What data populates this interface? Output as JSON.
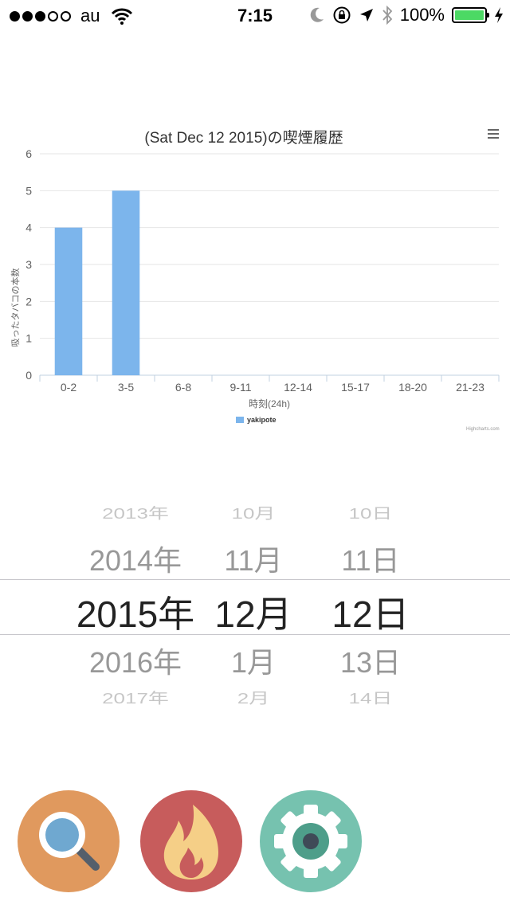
{
  "status_bar": {
    "carrier": "au",
    "time": "7:15",
    "battery_percent": "100%",
    "signal_bars_filled": 3,
    "signal_bars_total": 5
  },
  "chart": {
    "menu_icon": "hamburger-menu-icon",
    "legend_label": "yakipote",
    "credits": "Highcharts.com"
  },
  "chart_data": {
    "type": "bar",
    "title": "(Sat Dec 12 2015)の喫煙履歴",
    "xlabel": "時刻(24h)",
    "ylabel": "吸ったタバコの本数",
    "categories": [
      "0-2",
      "3-5",
      "6-8",
      "9-11",
      "12-14",
      "15-17",
      "18-20",
      "21-23"
    ],
    "series": [
      {
        "name": "yakipote",
        "values": [
          4,
          5,
          0,
          0,
          0,
          0,
          0,
          0
        ],
        "color": "#7cb5ec"
      }
    ],
    "ylim": [
      0,
      6
    ],
    "yticks": [
      0,
      1,
      2,
      3,
      4,
      5,
      6
    ],
    "grid": true,
    "legend_position": "bottom-center"
  },
  "date_picker": {
    "years": [
      "2013年",
      "2014年",
      "2015年",
      "2016年",
      "2017年"
    ],
    "months": [
      "10月",
      "11月",
      "12月",
      "1月",
      "2月"
    ],
    "days": [
      "10日",
      "11日",
      "12日",
      "13日",
      "14日"
    ],
    "selected": {
      "year": "2015年",
      "month": "12月",
      "day": "12日"
    }
  },
  "buttons": [
    {
      "name": "search-button",
      "icon": "magnifier-icon",
      "color": "#e0995e"
    },
    {
      "name": "smoke-button",
      "icon": "flame-icon",
      "color": "#c75c5c"
    },
    {
      "name": "settings-button",
      "icon": "gear-icon",
      "color": "#76c2af"
    }
  ]
}
